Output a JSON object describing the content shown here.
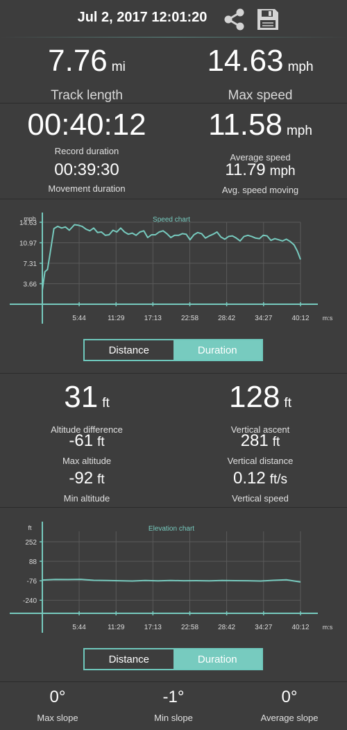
{
  "header": {
    "title": "Jul 2, 2017 12:01:20",
    "share_icon": "share-icon",
    "save_icon": "floppy-disk-icon"
  },
  "colors": {
    "accent": "#77cbbf",
    "background": "#3d3d3d",
    "grid": "#5a5a5a"
  },
  "track": {
    "length_value": "7.76",
    "length_unit": "mi",
    "length_label": "Track length",
    "max_speed_value": "14.63",
    "max_speed_unit": "mph",
    "max_speed_label": "Max speed",
    "record_duration_value": "00:40:12",
    "record_duration_label": "Record duration",
    "avg_speed_value": "11.58",
    "avg_speed_unit": "mph",
    "avg_speed_label": "Average speed",
    "movement_duration_value": "00:39:30",
    "movement_duration_label": "Movement duration",
    "avg_moving_value": "11.79",
    "avg_moving_unit": "mph",
    "avg_moving_label": "Avg. speed moving"
  },
  "altitude": {
    "diff_value": "31",
    "diff_unit": "ft",
    "diff_label": "Altitude difference",
    "ascent_value": "128",
    "ascent_unit": "ft",
    "ascent_label": "Vertical ascent",
    "max_value": "-61",
    "max_unit": "ft",
    "max_label": "Max altitude",
    "vdist_value": "281",
    "vdist_unit": "ft",
    "vdist_label": "Vertical distance",
    "min_value": "-92",
    "min_unit": "ft",
    "min_label": "Min altitude",
    "vspeed_value": "0.12",
    "vspeed_unit": "ft/s",
    "vspeed_label": "Vertical speed"
  },
  "toggles": {
    "speed": {
      "distance": "Distance",
      "duration": "Duration",
      "selected": "Duration"
    },
    "elevation": {
      "distance": "Distance",
      "duration": "Duration",
      "selected": "Duration"
    }
  },
  "slope": {
    "max_value": "0°",
    "max_label": "Max slope",
    "min_value": "-1°",
    "min_label": "Min slope",
    "avg_value": "0°",
    "avg_label": "Average slope"
  },
  "chart_data": [
    {
      "type": "line",
      "title": "Speed chart",
      "ylabel": "mph",
      "xlabel": "m:s",
      "x_ticks": [
        "5:44",
        "11:29",
        "17:13",
        "22:58",
        "28:42",
        "34:27",
        "40:12"
      ],
      "y_ticks": [
        "3.66",
        "7.31",
        "10.97",
        "14.63"
      ],
      "ylim": [
        0,
        14.63
      ],
      "xlim_minutes": [
        0,
        40.2
      ],
      "series": [
        {
          "x": [
            0,
            0.4,
            0.8,
            1.2,
            1.8,
            2.4,
            3,
            3.6,
            4.2,
            5,
            5.6,
            6.2,
            6.8,
            7.4,
            8,
            8.6,
            9.2,
            9.8,
            10.4,
            11,
            11.6,
            12.2,
            12.8,
            13.4,
            14,
            14.6,
            15.2,
            15.8,
            16.4,
            17,
            17.6,
            18.2,
            18.8,
            19.4,
            20,
            20.6,
            21.2,
            21.8,
            22.4,
            23,
            23.6,
            24.2,
            24.8,
            25.4,
            26,
            26.6,
            27.2,
            27.8,
            28.4,
            29,
            29.6,
            30.2,
            30.8,
            31.4,
            32,
            32.6,
            33.2,
            33.8,
            34.4,
            35,
            35.6,
            36.2,
            36.8,
            37.4,
            38,
            38.6,
            39.2,
            39.7,
            40.2
          ],
          "y": [
            2.5,
            5.8,
            6.2,
            9,
            13.5,
            13.9,
            13.6,
            13.8,
            13.2,
            14.2,
            14.1,
            13.9,
            13.4,
            13.1,
            13.6,
            12.8,
            12.9,
            12.3,
            12.4,
            13.2,
            12.9,
            13.6,
            12.9,
            12.5,
            12.7,
            12.3,
            12.9,
            13.1,
            11.9,
            12.4,
            12.4,
            12.9,
            13.1,
            12.6,
            11.9,
            12.3,
            12.3,
            12.6,
            12.5,
            11.5,
            12.4,
            12.8,
            12.6,
            11.8,
            12.2,
            12.5,
            12.9,
            12,
            11.6,
            12.1,
            12.2,
            11.8,
            11.3,
            12.1,
            12.3,
            12.1,
            11.8,
            11.7,
            12.3,
            12.2,
            11.4,
            11.7,
            11.5,
            11.3,
            11.6,
            11.2,
            10.6,
            9.5,
            8
          ]
        }
      ]
    },
    {
      "type": "line",
      "title": "Elevation chart",
      "ylabel": "ft",
      "xlabel": "m:s",
      "x_ticks": [
        "5:44",
        "11:29",
        "17:13",
        "22:58",
        "28:42",
        "34:27",
        "40:12"
      ],
      "y_ticks": [
        "252",
        "88",
        "-76",
        "-240"
      ],
      "ylim": [
        -350,
        340
      ],
      "xlim_minutes": [
        0,
        40.2
      ],
      "series": [
        {
          "x": [
            0,
            2,
            4,
            6,
            8,
            10,
            12,
            14,
            16,
            18,
            20,
            22,
            24,
            26,
            28,
            30,
            32,
            34,
            36,
            38,
            40.2
          ],
          "y": [
            -70,
            -65,
            -66,
            -64,
            -72,
            -74,
            -76,
            -78,
            -74,
            -77,
            -74,
            -76,
            -75,
            -77,
            -74,
            -75,
            -76,
            -78,
            -72,
            -68,
            -86
          ]
        }
      ]
    }
  ]
}
